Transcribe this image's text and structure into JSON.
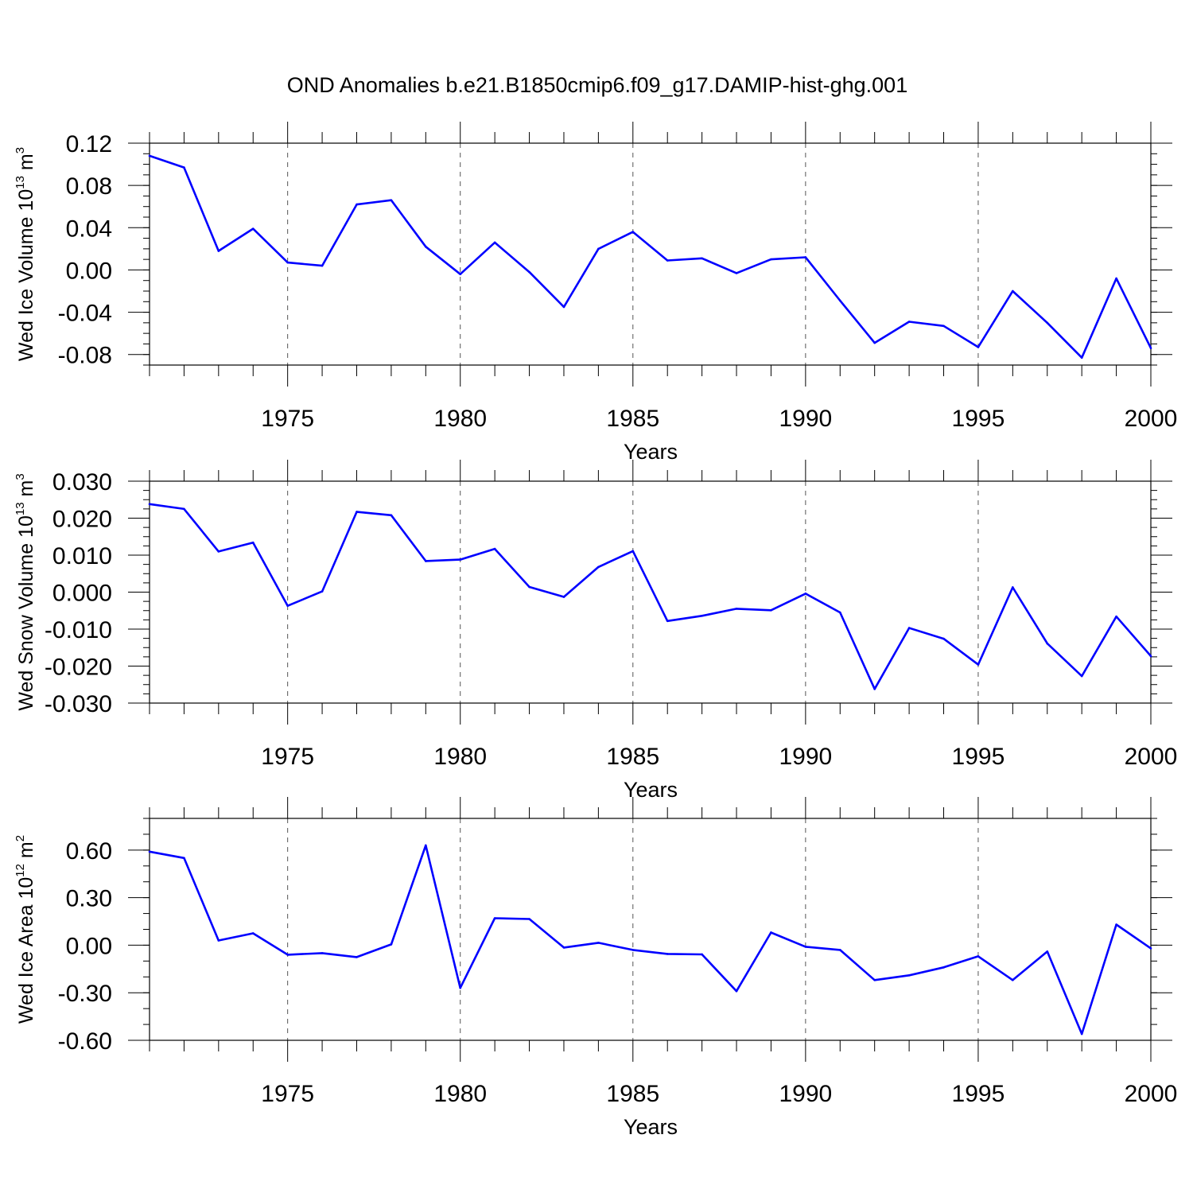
{
  "title": "OND Anomalies b.e21.B1850cmip6.f09_g17.DAMIP-hist-ghg.001",
  "colors": {
    "line": "#0000ff",
    "axis": "#000000",
    "grid": "#555555",
    "background": "#ffffff"
  },
  "chart_data": [
    {
      "type": "line",
      "xlabel": "Years",
      "ylabel": {
        "main": "Wed Ice Volume 10",
        "exponent": "13",
        "unit": "m",
        "unit_exponent": "3"
      },
      "xlim": [
        1971,
        2000
      ],
      "ylim": [
        -0.09,
        0.12
      ],
      "yticks": [
        0.12,
        0.08,
        0.04,
        0.0,
        -0.04,
        -0.08
      ],
      "ytick_labels": [
        "0.12",
        "0.08",
        "0.04",
        "0.00",
        "-0.04",
        "-0.08"
      ],
      "xticks": [
        1975,
        1980,
        1985,
        1990,
        1995,
        2000
      ],
      "xtick_labels": [
        "1975",
        "1980",
        "1985",
        "1990",
        "1995",
        "2000"
      ],
      "grid": "dashed vertical at major x ticks",
      "x": [
        1971,
        1972,
        1973,
        1974,
        1975,
        1976,
        1977,
        1978,
        1979,
        1980,
        1981,
        1982,
        1983,
        1984,
        1985,
        1986,
        1987,
        1988,
        1989,
        1990,
        1991,
        1992,
        1993,
        1994,
        1995,
        1996,
        1997,
        1998,
        1999,
        2000
      ],
      "y": [
        0.108,
        0.097,
        0.018,
        0.039,
        0.007,
        0.004,
        0.062,
        0.066,
        0.022,
        -0.004,
        0.026,
        -0.002,
        -0.035,
        0.02,
        0.036,
        0.009,
        0.011,
        -0.003,
        0.01,
        0.012,
        -0.029,
        -0.069,
        -0.049,
        -0.053,
        -0.073,
        -0.02,
        -0.05,
        -0.083,
        -0.008,
        -0.074
      ]
    },
    {
      "type": "line",
      "xlabel": "Years",
      "ylabel": {
        "main": "Wed Snow Volume 10",
        "exponent": "13",
        "unit": "m",
        "unit_exponent": "3"
      },
      "xlim": [
        1971,
        2000
      ],
      "ylim": [
        -0.03,
        0.03
      ],
      "yticks": [
        0.03,
        0.02,
        0.01,
        0.0,
        -0.01,
        -0.02,
        -0.03
      ],
      "ytick_labels": [
        "0.030",
        "0.020",
        "0.010",
        "0.000",
        "-0.010",
        "-0.020",
        "-0.030"
      ],
      "xticks": [
        1975,
        1980,
        1985,
        1990,
        1995,
        2000
      ],
      "xtick_labels": [
        "1975",
        "1980",
        "1985",
        "1990",
        "1995",
        "2000"
      ],
      "grid": "dashed vertical at major x ticks",
      "x": [
        1971,
        1972,
        1973,
        1974,
        1975,
        1976,
        1977,
        1978,
        1979,
        1980,
        1981,
        1982,
        1983,
        1984,
        1985,
        1986,
        1987,
        1988,
        1989,
        1990,
        1991,
        1992,
        1993,
        1994,
        1995,
        1996,
        1997,
        1998,
        1999,
        2000
      ],
      "y": [
        0.0238,
        0.0225,
        0.011,
        0.0134,
        -0.0037,
        0.0002,
        0.0217,
        0.0208,
        0.0084,
        0.0088,
        0.0117,
        0.0014,
        -0.0013,
        0.0068,
        0.0111,
        -0.0078,
        -0.0064,
        -0.0045,
        -0.0049,
        -0.0004,
        -0.0055,
        -0.0262,
        -0.0097,
        -0.0126,
        -0.0196,
        0.0013,
        -0.0139,
        -0.0227,
        -0.0066,
        -0.0173
      ]
    },
    {
      "type": "line",
      "xlabel": "Years",
      "ylabel": {
        "main": "Wed Ice Area 10",
        "exponent": "12",
        "unit": "m",
        "unit_exponent": "2"
      },
      "xlim": [
        1971,
        2000
      ],
      "ylim": [
        -0.6,
        0.8
      ],
      "yticks": [
        0.6,
        0.3,
        0.0,
        -0.3,
        -0.6
      ],
      "ytick_labels": [
        "0.60",
        "0.30",
        "0.00",
        "-0.30",
        "-0.60"
      ],
      "xticks": [
        1975,
        1980,
        1985,
        1990,
        1995,
        2000
      ],
      "xtick_labels": [
        "1975",
        "1980",
        "1985",
        "1990",
        "1995",
        "2000"
      ],
      "grid": "dashed vertical at major x ticks",
      "x": [
        1971,
        1972,
        1973,
        1974,
        1975,
        1976,
        1977,
        1978,
        1979,
        1980,
        1981,
        1982,
        1983,
        1984,
        1985,
        1986,
        1987,
        1988,
        1989,
        1990,
        1991,
        1992,
        1993,
        1994,
        1995,
        1996,
        1997,
        1998,
        1999,
        2000
      ],
      "y": [
        0.59,
        0.55,
        0.03,
        0.075,
        -0.06,
        -0.05,
        -0.075,
        0.005,
        0.63,
        -0.27,
        0.17,
        0.165,
        -0.015,
        0.015,
        -0.03,
        -0.055,
        -0.058,
        -0.29,
        0.08,
        -0.01,
        -0.03,
        -0.22,
        -0.19,
        -0.14,
        -0.07,
        -0.22,
        -0.04,
        -0.56,
        0.13,
        -0.02
      ]
    }
  ]
}
